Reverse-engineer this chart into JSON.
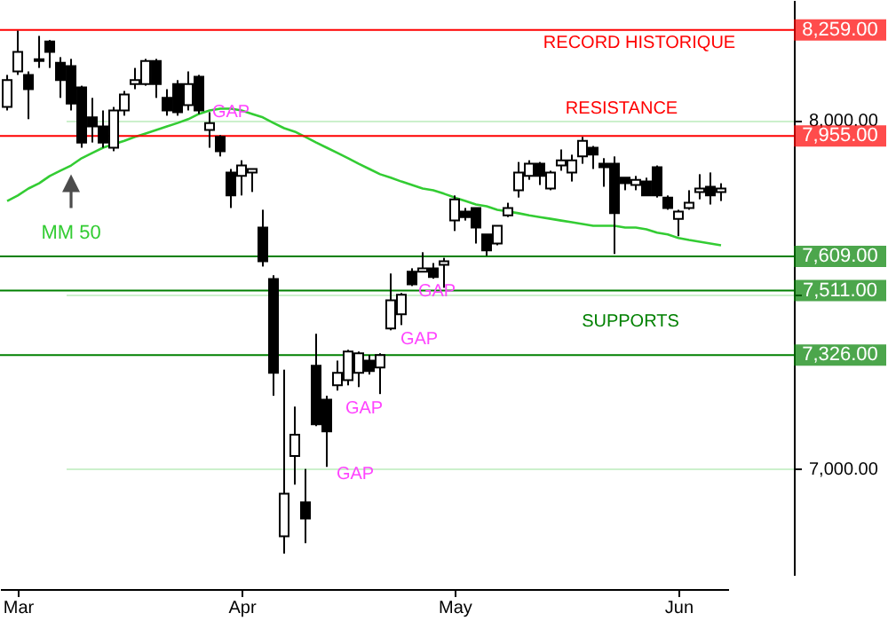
{
  "chart_data": {
    "type": "candlestick",
    "categories": [
      null,
      "Mar",
      null,
      null,
      null,
      null,
      null,
      null,
      null,
      null,
      null,
      null,
      null,
      null,
      null,
      null,
      null,
      null,
      null,
      null,
      null,
      null,
      "Apr",
      null,
      null,
      null,
      null,
      null,
      null,
      null,
      null,
      null,
      null,
      null,
      null,
      null,
      null,
      null,
      null,
      null,
      null,
      null,
      "May",
      null,
      null,
      null,
      null,
      null,
      null,
      null,
      null,
      null,
      null,
      null,
      null,
      null,
      null,
      null,
      null,
      null,
      null,
      null,
      null,
      "Jun",
      null,
      null,
      null,
      null
    ],
    "ohlc": [
      [
        8038,
        8130,
        8028,
        8115
      ],
      [
        8140,
        8257,
        8130,
        8196
      ],
      [
        8130,
        8140,
        8003,
        8089
      ],
      [
        8170,
        8242,
        8150,
        8175
      ],
      [
        8226,
        8230,
        8150,
        8196
      ],
      [
        8165,
        8181,
        8064,
        8115
      ],
      [
        8155,
        8176,
        8028,
        8048
      ],
      [
        8094,
        8099,
        7921,
        7936
      ],
      [
        8008,
        8064,
        7936,
        7982
      ],
      [
        7982,
        8028,
        7921,
        7936
      ],
      [
        7921,
        8038,
        7911,
        8028
      ],
      [
        8028,
        8084,
        8013,
        8074
      ],
      [
        8104,
        8150,
        8089,
        8115
      ],
      [
        8104,
        8176,
        8099,
        8170
      ],
      [
        8170,
        8176,
        8064,
        8104
      ],
      [
        8064,
        8089,
        8013,
        8028
      ],
      [
        8104,
        8115,
        8013,
        8023
      ],
      [
        8043,
        8140,
        8028,
        8104
      ],
      [
        8125,
        8130,
        8018,
        8028
      ],
      [
        7972,
        8023,
        7921,
        7992
      ],
      [
        7952,
        7957,
        7896,
        7911
      ],
      [
        7850,
        7860,
        7748,
        7784
      ],
      [
        7840,
        7885,
        7784,
        7870
      ],
      [
        7850,
        7860,
        7794,
        7860
      ],
      [
        7692,
        7743,
        7580,
        7595
      ],
      [
        7544,
        7555,
        7209,
        7275
      ],
      [
        6806,
        7284,
        6756,
        6928
      ],
      [
        7036,
        7178,
        6954,
        7097
      ],
      [
        6903,
        6999,
        6786,
        6857
      ],
      [
        7295,
        7387,
        7122,
        7127
      ],
      [
        7198,
        7209,
        7005,
        7107
      ],
      [
        7239,
        7310,
        7224,
        7275
      ],
      [
        7254,
        7341,
        7239,
        7336
      ],
      [
        7275,
        7336,
        7234,
        7331
      ],
      [
        7310,
        7326,
        7270,
        7280
      ],
      [
        7290,
        7331,
        7214,
        7326
      ],
      [
        7402,
        7560,
        7397,
        7483
      ],
      [
        7443,
        7504,
        7412,
        7499
      ],
      [
        7565,
        7575,
        7524,
        7529
      ],
      [
        7565,
        7621,
        7565,
        7575
      ],
      [
        7575,
        7590,
        7545,
        7550
      ],
      [
        7585,
        7605,
        7519,
        7595
      ],
      [
        7712,
        7784,
        7682,
        7773
      ],
      [
        7738,
        7748,
        7712,
        7722
      ],
      [
        7748,
        7748,
        7646,
        7692
      ],
      [
        7672,
        7672,
        7611,
        7626
      ],
      [
        7646,
        7697,
        7641,
        7697
      ],
      [
        7727,
        7763,
        7722,
        7748
      ],
      [
        7799,
        7880,
        7778,
        7850
      ],
      [
        7840,
        7885,
        7829,
        7875
      ],
      [
        7875,
        7880,
        7814,
        7840
      ],
      [
        7804,
        7855,
        7799,
        7850
      ],
      [
        7870,
        7916,
        7855,
        7885
      ],
      [
        7850,
        7901,
        7824,
        7885
      ],
      [
        7896,
        7952,
        7875,
        7941
      ],
      [
        7921,
        7926,
        7860,
        7901
      ],
      [
        7875,
        7891,
        7809,
        7865
      ],
      [
        7875,
        7896,
        7616,
        7733
      ],
      [
        7835,
        7835,
        7799,
        7819
      ],
      [
        7814,
        7840,
        7799,
        7829
      ],
      [
        7824,
        7835,
        7784,
        7784
      ],
      [
        7865,
        7870,
        7778,
        7784
      ],
      [
        7778,
        7784,
        7743,
        7748
      ],
      [
        7717,
        7743,
        7667,
        7738
      ],
      [
        7748,
        7799,
        7743,
        7763
      ],
      [
        7794,
        7845,
        7773,
        7804
      ],
      [
        7809,
        7850,
        7758,
        7784
      ],
      [
        7794,
        7819,
        7768,
        7804
      ]
    ],
    "series": [
      {
        "type": "line",
        "name": "MM 50",
        "color": "#33cc33",
        "values": [
          7768,
          7784,
          7804,
          7819,
          7840,
          7855,
          7870,
          7891,
          7906,
          7921,
          7931,
          7941,
          7952,
          7962,
          7972,
          7982,
          7992,
          8003,
          8018,
          8028,
          8033,
          8033,
          8028,
          8018,
          8008,
          7992,
          7977,
          7967,
          7952,
          7936,
          7921,
          7906,
          7891,
          7875,
          7860,
          7845,
          7835,
          7824,
          7814,
          7804,
          7799,
          7789,
          7778,
          7768,
          7758,
          7753,
          7743,
          7738,
          7733,
          7727,
          7722,
          7717,
          7712,
          7707,
          7702,
          7697,
          7697,
          7697,
          7692,
          7692,
          7687,
          7677,
          7672,
          7662,
          7656,
          7651,
          7646,
          7641
        ]
      }
    ],
    "ylim": [
      6695,
      8345
    ],
    "yticks": [
      {
        "value": 7000,
        "label": "7,000.00"
      },
      {
        "value": 7500,
        "label": null
      },
      {
        "value": 8000,
        "label": "8,000.00"
      }
    ],
    "grid": "y",
    "ref_lines": [
      {
        "axis": "y",
        "value": 8259,
        "label": "8,259.00",
        "color": "#ff0000"
      },
      {
        "axis": "y",
        "value": 7955,
        "label": "7,955.00",
        "color": "#ff0000"
      },
      {
        "axis": "y",
        "value": 7609,
        "label": "7,609.00",
        "color": "#008000"
      },
      {
        "axis": "y",
        "value": 7511,
        "label": "7,511.00",
        "color": "#008000"
      },
      {
        "axis": "y",
        "value": 7326,
        "label": "7,326.00",
        "color": "#008000"
      }
    ],
    "annotations": [
      "RECORD HISTORIQUE",
      "RESISTANCE",
      "SUPPORTS",
      "GAP",
      "GAP",
      "GAP",
      "GAP",
      "GAP"
    ]
  }
}
